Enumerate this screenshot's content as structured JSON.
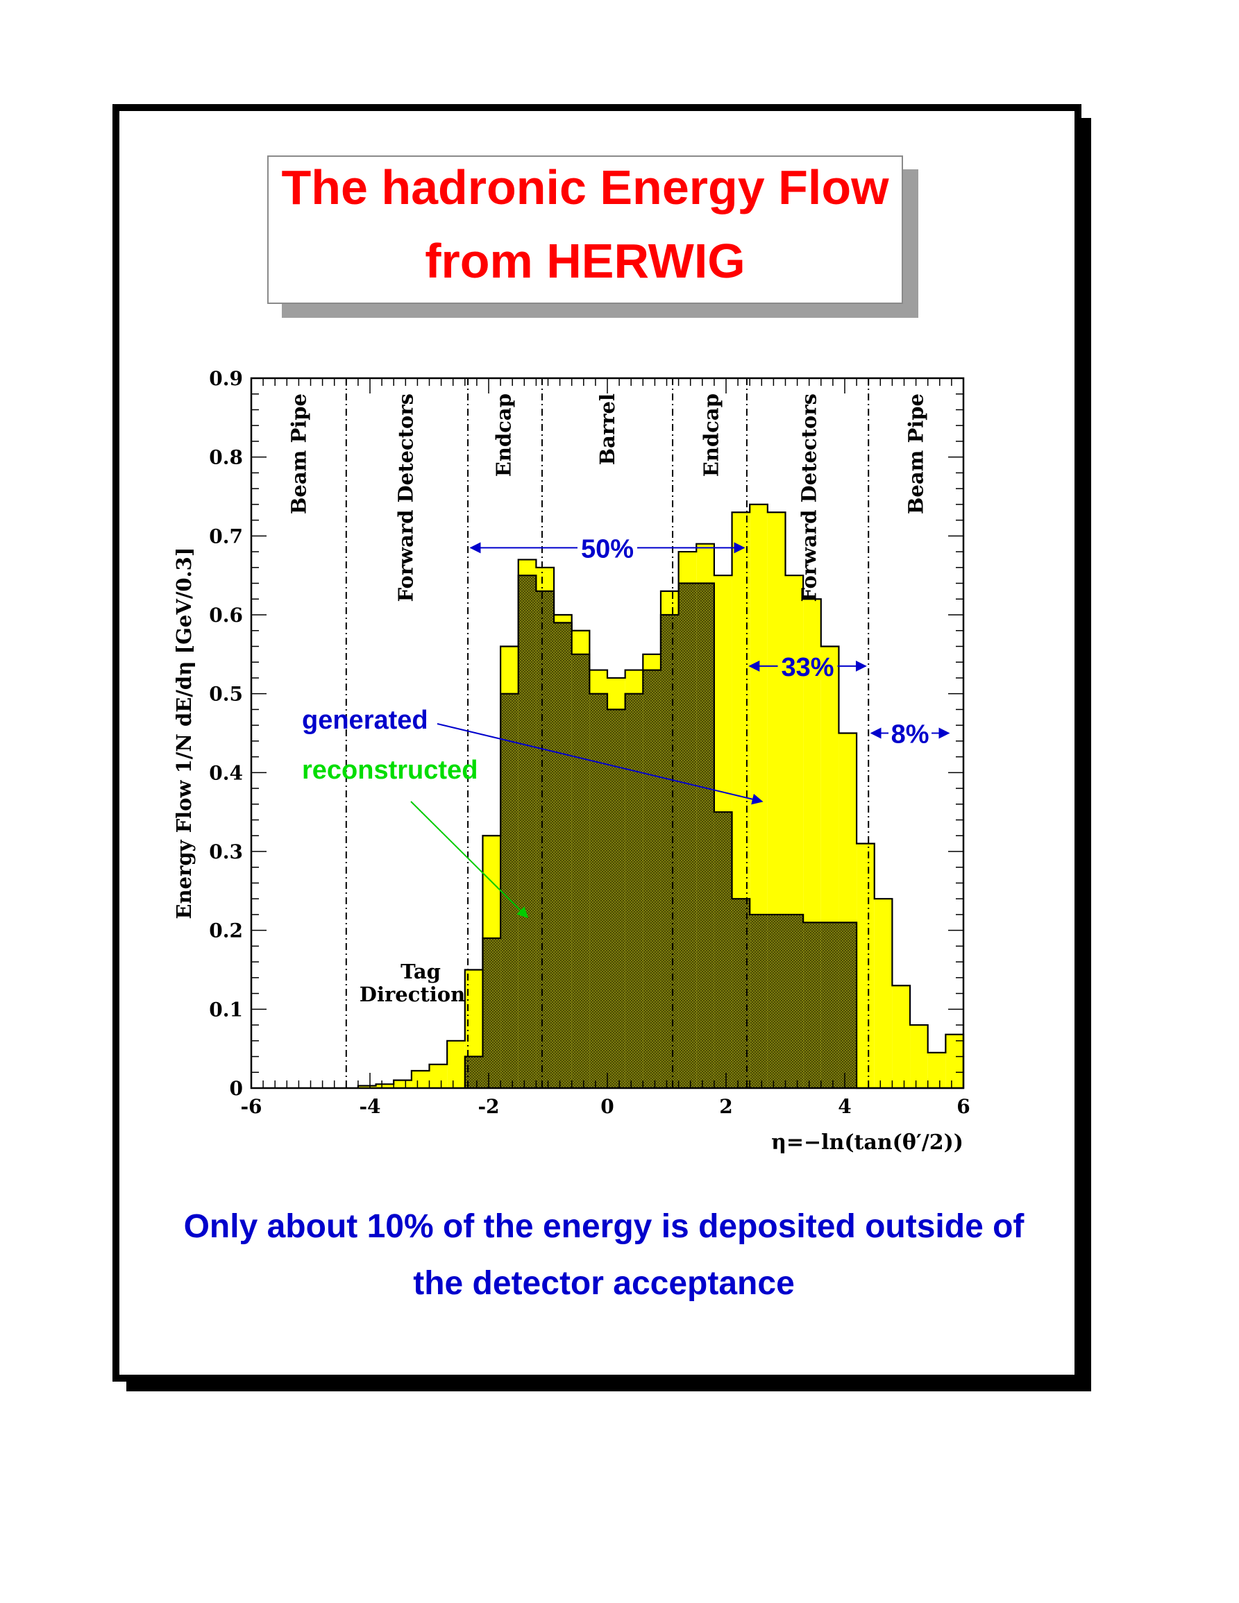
{
  "title": {
    "line1": "The hadronic Energy Flow",
    "line2": "from HERWIG"
  },
  "footer": {
    "line1": "Only about 10% of the energy is deposited outside of",
    "line2": "the detector acceptance"
  },
  "chart_data": {
    "type": "bar",
    "histogram": true,
    "xlabel": "η=−ln(tan(θ′/2))",
    "ylabel": "Energy Flow   1/N dE/dη   [GeV/0.3]",
    "xlim": [
      -6,
      6
    ],
    "ylim": [
      0,
      0.9
    ],
    "x_ticks": [
      -6,
      -4,
      -2,
      0,
      2,
      4,
      6
    ],
    "y_ticks": [
      0,
      0.1,
      0.2,
      0.3,
      0.4,
      0.5,
      0.6,
      0.7,
      0.8,
      0.9
    ],
    "bin_edges": [
      -4.2,
      -3.9,
      -3.6,
      -3.3,
      -3.0,
      -2.7,
      -2.4,
      -2.1,
      -1.8,
      -1.5,
      -1.2,
      -0.9,
      -0.6,
      -0.3,
      0.0,
      0.3,
      0.6,
      0.9,
      1.2,
      1.5,
      1.8,
      2.1,
      2.4,
      2.7,
      3.0,
      3.3,
      3.6,
      3.9,
      4.2,
      4.5,
      4.8,
      5.1,
      5.4,
      5.7,
      6.0
    ],
    "series": [
      {
        "name": "generated",
        "color": "#ffff00",
        "values": [
          0.003,
          0.005,
          0.01,
          0.022,
          0.03,
          0.06,
          0.15,
          0.32,
          0.56,
          0.67,
          0.66,
          0.6,
          0.58,
          0.53,
          0.52,
          0.53,
          0.55,
          0.63,
          0.68,
          0.69,
          0.65,
          0.73,
          0.74,
          0.73,
          0.65,
          0.62,
          0.56,
          0.45,
          0.31,
          0.24,
          0.13,
          0.08,
          0.045,
          0.068
        ]
      },
      {
        "name": "reconstructed",
        "color": "#7f7f00",
        "values": [
          0,
          0,
          0,
          0,
          0,
          0,
          0.04,
          0.19,
          0.5,
          0.65,
          0.63,
          0.59,
          0.55,
          0.5,
          0.48,
          0.5,
          0.53,
          0.6,
          0.64,
          0.64,
          0.35,
          0.24,
          0.22,
          0.22,
          0.22,
          0.21,
          0.21,
          0.21,
          0,
          0,
          0,
          0,
          0,
          0
        ]
      }
    ],
    "boundaries": [
      -4.4,
      -2.35,
      -1.1,
      1.1,
      2.35,
      4.4
    ],
    "regions": [
      {
        "label": "Beam Pipe",
        "x": -5.2
      },
      {
        "label": "Forward Detectors",
        "x": -3.4
      },
      {
        "label": "Endcap",
        "x": -1.75
      },
      {
        "label": "Barrel",
        "x": 0
      },
      {
        "label": "Endcap",
        "x": 1.75
      },
      {
        "label": "Forward Detectors",
        "x": 3.4
      },
      {
        "label": "Beam Pipe",
        "x": 5.2
      }
    ],
    "fractions": [
      {
        "label": "50%",
        "x1": -2.35,
        "x2": 2.35,
        "y": 0.685
      },
      {
        "label": "33%",
        "x1": 2.35,
        "x2": 4.4,
        "y": 0.535
      },
      {
        "label": "8%",
        "x1": 4.4,
        "x2": 5.8,
        "y": 0.45
      }
    ],
    "annotations": {
      "generated_label": "generated",
      "reconstructed_label": "reconstructed",
      "tag_line1": "Tag",
      "tag_line2": "Direction"
    }
  }
}
